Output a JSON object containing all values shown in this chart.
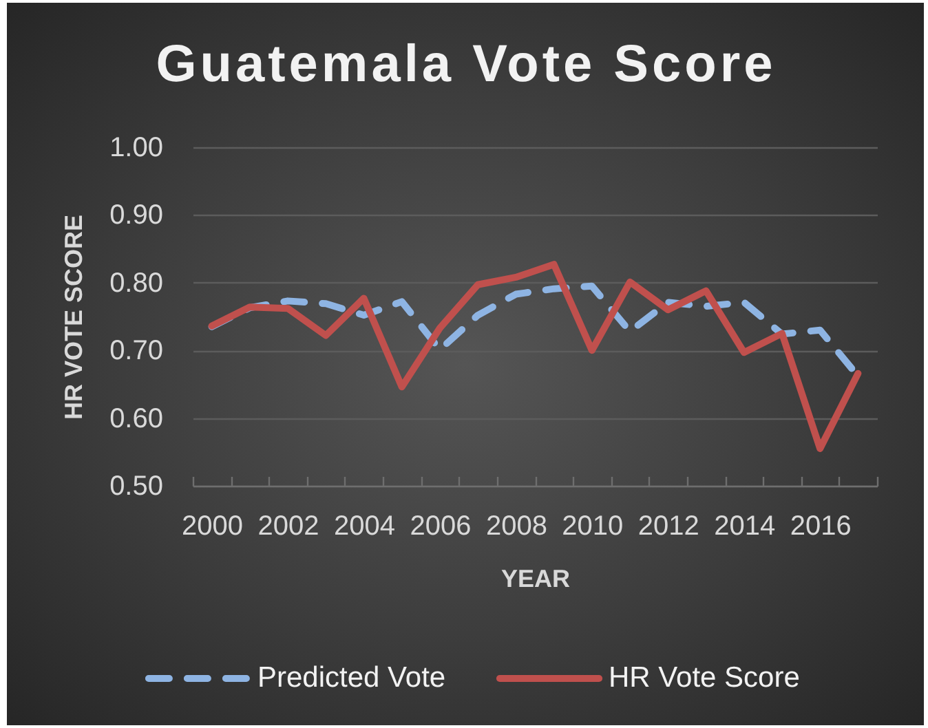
{
  "chart_data": {
    "type": "line",
    "title": "Guatemala Vote Score",
    "xlabel": "YEAR",
    "ylabel": "HR VOTE SCORE",
    "categories": [
      "2000",
      null,
      "2002",
      null,
      "2004",
      null,
      "2006",
      null,
      "2008",
      null,
      "2010",
      null,
      "2012",
      null,
      "2014",
      null,
      "2016",
      null
    ],
    "series": [
      {
        "name": "Predicted Vote",
        "color": "#8eb4e3",
        "line_style": "dashed",
        "values": [
          0.735,
          0.763,
          0.773,
          0.769,
          0.752,
          0.772,
          0.701,
          0.752,
          0.783,
          0.791,
          0.795,
          0.728,
          0.771,
          0.765,
          0.771,
          0.724,
          0.73,
          0.662
        ]
      },
      {
        "name": "HR Vote Score",
        "color": "#c0504d",
        "line_style": "solid",
        "values": [
          0.736,
          0.764,
          0.762,
          0.722,
          0.777,
          0.646,
          0.733,
          0.797,
          0.808,
          0.827,
          0.7,
          0.801,
          0.76,
          0.788,
          0.697,
          0.725,
          0.555,
          0.666
        ]
      }
    ],
    "ylim": [
      0.5,
      1.0
    ],
    "yticks": [
      {
        "value": 0.5,
        "label": "0.50"
      },
      {
        "value": 0.6,
        "label": "0.60"
      },
      {
        "value": 0.7,
        "label": "0.70"
      },
      {
        "value": 0.8,
        "label": "0.80"
      },
      {
        "value": 0.9,
        "label": "0.90"
      },
      {
        "value": 1.0,
        "label": "1.00"
      }
    ],
    "grid": "y",
    "legend": "bottom"
  }
}
